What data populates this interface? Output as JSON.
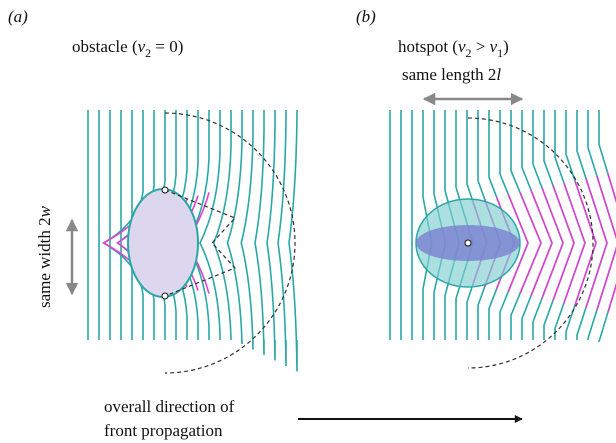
{
  "panels": [
    {
      "tag": "(a)",
      "caption": {
        "prefix": "obstacle (",
        "var": "v",
        "sub": "2",
        "suffix": " = 0)"
      },
      "dimension": {
        "prefix": "same width 2",
        "var": "w"
      }
    },
    {
      "tag": "(b)",
      "caption": {
        "prefix": "hotspot (",
        "var": "v",
        "sub": "2",
        "middle": " > ",
        "var2": "v",
        "sub2": "1",
        "suffix": ")"
      },
      "dimension": {
        "prefix": "same length 2",
        "var": "l"
      }
    }
  ],
  "footer": {
    "line1": "overall direction of",
    "line2": "front propagation"
  }
}
